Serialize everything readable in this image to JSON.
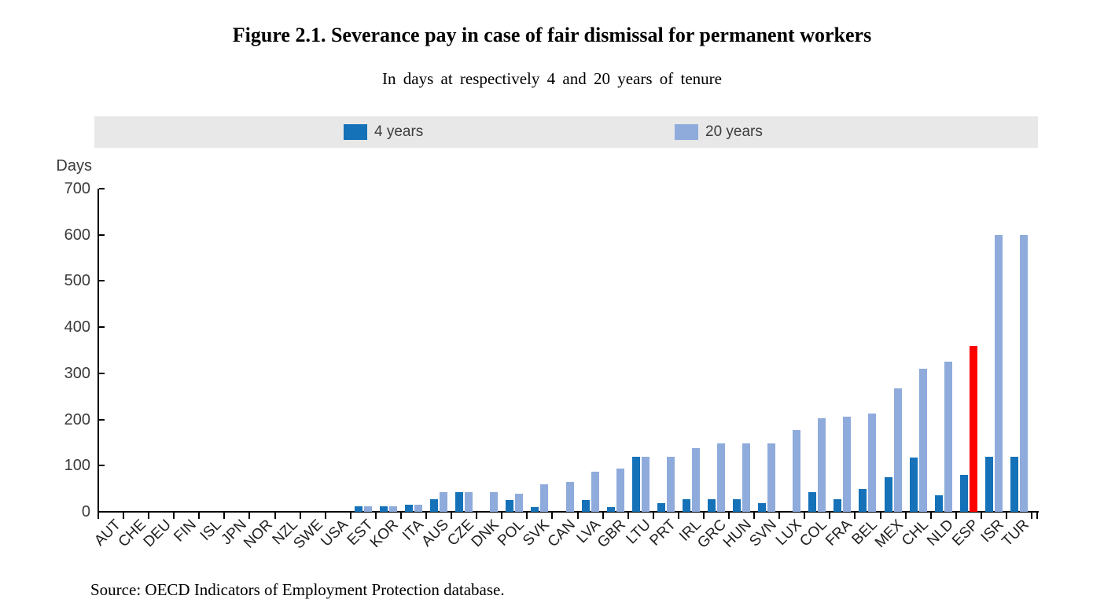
{
  "chart_data": {
    "type": "bar",
    "title": "Figure 2.1. Severance pay in case of fair dismissal for permanent workers",
    "subtitle": "In days at respectively 4 and 20 years of tenure",
    "ylabel": "Days",
    "unit": "days",
    "ylim": [
      0,
      700
    ],
    "yticks": [
      0,
      100,
      200,
      300,
      400,
      500,
      600,
      700
    ],
    "grid": false,
    "legend_position": "top-band",
    "legend": {
      "items": [
        {
          "label": "4 years",
          "color": "#1572b8"
        },
        {
          "label": "20 years",
          "color": "#8fabdc"
        }
      ]
    },
    "highlight": {
      "category": "ESP",
      "series": "20 years",
      "color": "#ff0000"
    },
    "categories": [
      "AUT",
      "CHE",
      "DEU",
      "FIN",
      "ISL",
      "JPN",
      "NOR",
      "NZL",
      "SWE",
      "USA",
      "EST",
      "KOR",
      "ITA",
      "AUS",
      "CZE",
      "DNK",
      "POL",
      "SVK",
      "CAN",
      "LVA",
      "GBR",
      "LTU",
      "PRT",
      "IRL",
      "GRC",
      "HUN",
      "SVN",
      "LUX",
      "COL",
      "FRA",
      "BEL",
      "MEX",
      "CHL",
      "NLD",
      "ESP",
      "ISR",
      "TUR"
    ],
    "series": [
      {
        "name": "4 years",
        "values": [
          0,
          0,
          0,
          0,
          0,
          0,
          0,
          0,
          0,
          0,
          12,
          12,
          16,
          28,
          42,
          0,
          25,
          10,
          0,
          26,
          11,
          120,
          19,
          27,
          27,
          27,
          19,
          0,
          42,
          27,
          49,
          75,
          118,
          35,
          80,
          120,
          120
        ]
      },
      {
        "name": "20 years",
        "values": [
          0,
          0,
          0,
          0,
          0,
          0,
          0,
          0,
          0,
          0,
          12,
          12,
          16,
          42,
          42,
          42,
          40,
          59,
          64,
          87,
          94,
          120,
          119,
          138,
          148,
          148,
          148,
          177,
          203,
          206,
          213,
          268,
          310,
          325,
          360,
          600,
          600
        ]
      }
    ],
    "source": "Source: OECD Indicators of Employment Protection database.",
    "colors": {
      "axis": "#000000",
      "legend_band": "#e8e8e8",
      "tick_label": "#3a3a3a"
    }
  }
}
